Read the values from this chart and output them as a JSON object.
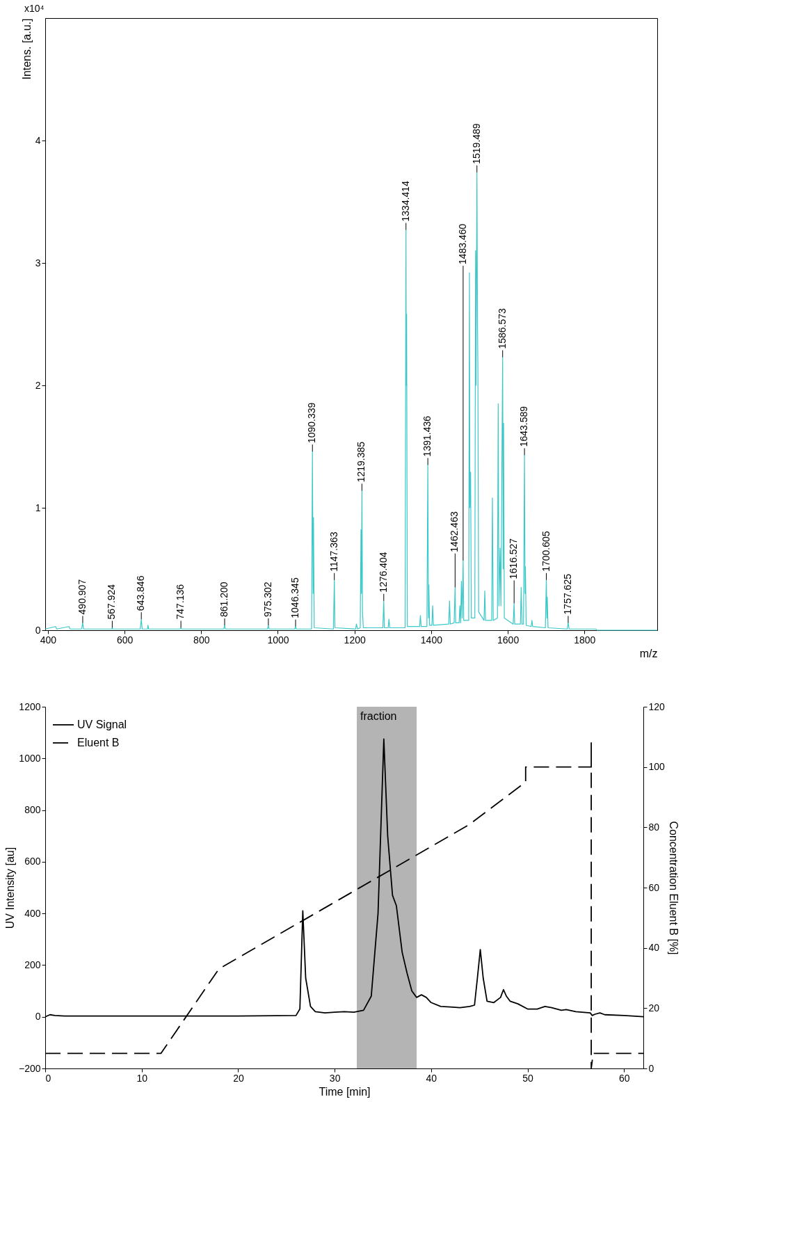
{
  "chart_data": [
    {
      "type": "line",
      "ylabel": "Intens. [a.u.]",
      "xlabel": "m/z",
      "xlim": [
        393,
        1990
      ],
      "ylim": [
        0,
        5
      ],
      "xticks": [
        400,
        600,
        800,
        1000,
        1200,
        1400,
        1600,
        1800
      ],
      "yticks": [
        0,
        1,
        2,
        3,
        4
      ],
      "series": [
        {
          "color": "#3cc8c8",
          "x": [
            393,
            420,
            423,
            455,
            458,
            488,
            490.9,
            493,
            567,
            567.9,
            569,
            641,
            643.8,
            646,
            660,
            661,
            663,
            745,
            747.1,
            749,
            859,
            861.2,
            863,
            973,
            975.3,
            977,
            1044,
            1046.3,
            1048,
            1088,
            1090.3,
            1092,
            1093,
            1095,
            1145,
            1147.4,
            1149,
            1203,
            1205,
            1208,
            1215,
            1217,
            1218,
            1219.4,
            1221,
            1223,
            1274,
            1276.4,
            1278,
            1288,
            1290,
            1292,
            1332,
            1334.4,
            1335,
            1336,
            1338,
            1370,
            1372,
            1374,
            1389,
            1391.4,
            1393,
            1394,
            1396,
            1402,
            1404,
            1406,
            1446,
            1448,
            1450,
            1460,
            1462.5,
            1464,
            1473,
            1475,
            1477,
            1479,
            1481,
            1483.5,
            1485,
            1498,
            1500,
            1501,
            1503,
            1505,
            1514,
            1516,
            1517,
            1519.5,
            1521,
            1522,
            1524,
            1538,
            1540,
            1542,
            1558,
            1560,
            1562,
            1573,
            1575,
            1577,
            1580,
            1582,
            1586.6,
            1588,
            1589,
            1591,
            1614,
            1616.5,
            1618,
            1633,
            1635,
            1637,
            1641,
            1643.6,
            1645,
            1646,
            1648,
            1661,
            1663,
            1665,
            1698,
            1700.6,
            1702,
            1703,
            1705,
            1755,
            1757.6,
            1760,
            1830,
            1832,
            1990
          ],
          "values": [
            0.01,
            0.03,
            0.01,
            0.03,
            0.01,
            0.01,
            0.06,
            0.01,
            0.01,
            0.02,
            0.01,
            0.01,
            0.09,
            0.01,
            0.01,
            0.04,
            0.01,
            0.01,
            0.02,
            0.01,
            0.01,
            0.04,
            0.01,
            0.01,
            0.04,
            0.01,
            0.01,
            0.03,
            0.01,
            0.01,
            1.46,
            0.3,
            0.92,
            0.02,
            0.01,
            0.41,
            0.02,
            0.01,
            0.05,
            0.01,
            0.02,
            0.82,
            0.3,
            1.14,
            0.15,
            0.02,
            0.02,
            0.24,
            0.02,
            0.02,
            0.09,
            0.02,
            0.02,
            3.27,
            2.0,
            2.58,
            0.03,
            0.03,
            0.12,
            0.03,
            0.03,
            1.35,
            0.1,
            0.37,
            0.04,
            0.04,
            0.2,
            0.04,
            0.05,
            0.24,
            0.05,
            0.06,
            0.35,
            0.06,
            0.06,
            0.2,
            0.06,
            0.4,
            0.1,
            0.57,
            0.08,
            0.08,
            2.92,
            1.0,
            1.29,
            0.1,
            0.1,
            3.1,
            2.0,
            3.74,
            2.5,
            2.14,
            0.15,
            0.08,
            0.32,
            0.08,
            0.08,
            1.08,
            0.08,
            0.1,
            1.85,
            0.2,
            0.67,
            0.2,
            2.23,
            0.5,
            1.69,
            0.1,
            0.05,
            0.22,
            0.05,
            0.05,
            0.35,
            0.05,
            0.05,
            1.43,
            0.3,
            0.52,
            0.04,
            0.03,
            0.08,
            0.03,
            0.02,
            0.41,
            0.1,
            0.27,
            0.02,
            0.01,
            0.06,
            0.01,
            0.01,
            0,
            0
          ]
        }
      ],
      "annotations": [
        "x10⁴",
        {
          "text": "490.907",
          "x": 490.9,
          "y": 0.06
        },
        {
          "text": "567.924",
          "x": 567.9,
          "y": 0.02
        },
        {
          "text": "643.846",
          "x": 643.8,
          "y": 0.09
        },
        {
          "text": "747.136",
          "x": 747.1,
          "y": 0.02
        },
        {
          "text": "861.200",
          "x": 861.2,
          "y": 0.04
        },
        {
          "text": "975.302",
          "x": 975.3,
          "y": 0.04
        },
        {
          "text": "1046.345",
          "x": 1046.3,
          "y": 0.03
        },
        {
          "text": "1090.339",
          "x": 1090.3,
          "y": 1.46
        },
        {
          "text": "1147.363",
          "x": 1147.4,
          "y": 0.41
        },
        {
          "text": "1219.385",
          "x": 1219.4,
          "y": 1.14
        },
        {
          "text": "1276.404",
          "x": 1276.4,
          "y": 0.24
        },
        {
          "text": "1334.414",
          "x": 1334.4,
          "y": 3.27
        },
        {
          "text": "1391.436",
          "x": 1391.4,
          "y": 1.35
        },
        {
          "text": "1462.463",
          "x": 1462.5,
          "y": 0.35
        },
        {
          "text": "1483.460",
          "x": 1483.5,
          "y": 0.57
        },
        {
          "text": "1519.489",
          "x": 1519.5,
          "y": 3.74
        },
        {
          "text": "1586.573",
          "x": 1586.6,
          "y": 2.23
        },
        {
          "text": "1616.527",
          "x": 1616.5,
          "y": 0.22
        },
        {
          "text": "1643.589",
          "x": 1643.6,
          "y": 1.43
        },
        {
          "text": "1700.605",
          "x": 1700.6,
          "y": 0.41
        },
        {
          "text": "1757.625",
          "x": 1757.6,
          "y": 0.06
        }
      ]
    },
    {
      "type": "line",
      "xlabel": "Time [min]",
      "ylabel": "UV Intensity [au]",
      "y2label": "Concentration Eluent B [%]",
      "xlim": [
        0,
        62
      ],
      "xticks": [
        0,
        10,
        20,
        30,
        40,
        50,
        60
      ],
      "ylim": [
        -200,
        1200
      ],
      "yticks": [
        -200,
        0,
        200,
        400,
        600,
        800,
        1000,
        1200
      ],
      "y2lim": [
        0,
        120
      ],
      "y2ticks": [
        0,
        20,
        40,
        60,
        80,
        100,
        120
      ],
      "legend": "top left",
      "bands": [
        {
          "axis": "x",
          "from": 32.3,
          "to": 38.5,
          "label": "fraction",
          "color": "#b4b4b4"
        }
      ],
      "series": [
        {
          "name": "UV Signal",
          "color": "#000000",
          "line_style": "solid",
          "x": [
            0,
            0.5,
            1,
            2,
            10,
            20,
            26,
            26.4,
            26.7,
            27,
            27.5,
            28,
            29,
            30,
            31,
            32,
            33,
            33.8,
            34.5,
            35.1,
            35.5,
            36,
            36.4,
            37,
            37.5,
            38,
            38.5,
            39,
            39.5,
            40,
            41,
            42,
            43,
            44,
            44.5,
            44.8,
            45.1,
            45.4,
            45.8,
            46.5,
            47.2,
            47.5,
            47.8,
            48.2,
            49,
            50,
            51,
            51.8,
            52.5,
            53.5,
            54,
            55,
            56.5,
            56.7,
            57,
            57.5,
            58,
            60,
            62
          ],
          "values": [
            0,
            8,
            5,
            3,
            3,
            3,
            5,
            30,
            410,
            150,
            40,
            20,
            15,
            18,
            20,
            18,
            25,
            80,
            400,
            1075,
            700,
            470,
            430,
            250,
            170,
            100,
            75,
            85,
            75,
            55,
            40,
            38,
            35,
            40,
            45,
            150,
            260,
            150,
            60,
            55,
            75,
            105,
            80,
            60,
            50,
            30,
            30,
            40,
            35,
            25,
            28,
            20,
            15,
            5,
            10,
            15,
            8,
            5,
            0
          ]
        },
        {
          "name": "Eluent B",
          "color": "#000000",
          "line_style": "dashed",
          "axis": "y2",
          "x": [
            0,
            12,
            18,
            44,
            49.8,
            49.8,
            56.6,
            56.6,
            56.6,
            56.8,
            62
          ],
          "values": [
            5,
            5,
            33,
            81,
            95,
            100,
            100,
            108,
            0,
            5,
            5
          ]
        }
      ]
    }
  ]
}
